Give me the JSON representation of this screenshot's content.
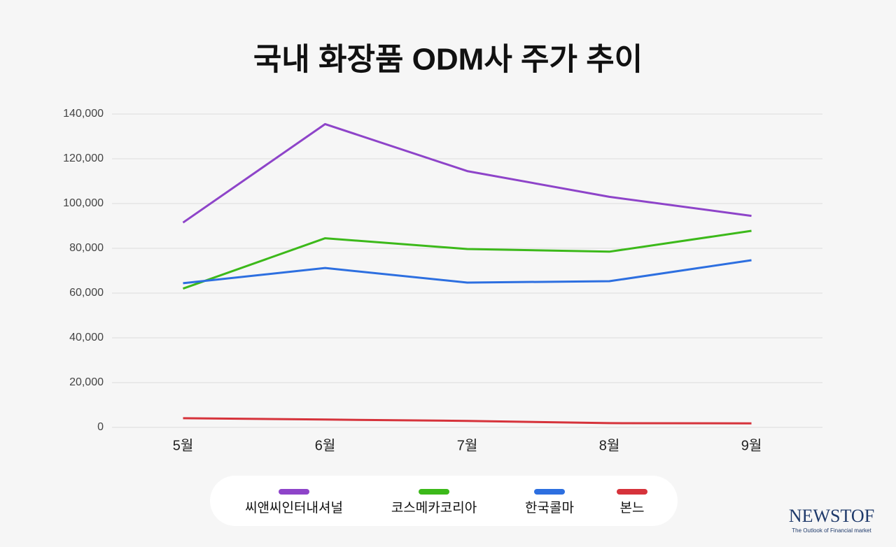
{
  "chart_data": {
    "type": "line",
    "title": "국내 화장품 ODM사 주가 추이",
    "categories": [
      "5월",
      "6월",
      "7월",
      "8월",
      "9월"
    ],
    "series": [
      {
        "name": "씨앤씨인터내셔널",
        "color": "#8e44c9",
        "values": [
          91500,
          135500,
          114500,
          103000,
          94500
        ]
      },
      {
        "name": "코스메카코리아",
        "color": "#3cb91a",
        "values": [
          62000,
          84500,
          79700,
          78500,
          87800
        ]
      },
      {
        "name": "한국콜마",
        "color": "#2d6fe0",
        "values": [
          64400,
          71200,
          64700,
          65300,
          74700
        ]
      },
      {
        "name": "본느",
        "color": "#d6333b",
        "values": [
          4100,
          3500,
          2900,
          1900,
          1800
        ]
      }
    ],
    "ylim": [
      0,
      140000
    ],
    "yticks": [
      0,
      {
        "value": 20000,
        "label": "20,000"
      },
      {
        "value": 40000,
        "label": "40,000"
      },
      {
        "value": 60000,
        "label": "60,000"
      },
      {
        "value": 80000,
        "label": "80,000"
      },
      {
        "value": 100000,
        "label": "100,000"
      },
      {
        "value": 120000,
        "label": "120,000"
      },
      {
        "value": 140000,
        "label": "140,000"
      }
    ],
    "grid": true,
    "legend": "bottom",
    "brand": "NEWSTOF",
    "brand_tagline": "The Outlook of Financial market"
  }
}
